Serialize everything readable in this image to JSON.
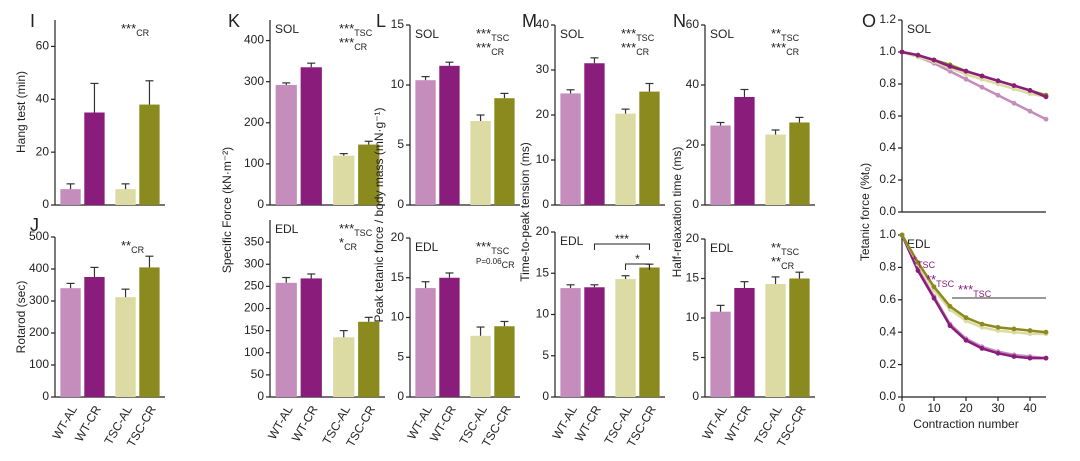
{
  "chart_data": [
    {
      "type": "bar",
      "panel": "I",
      "ylabel": "Hang test (min)",
      "categories": [
        null,
        null,
        null,
        null
      ],
      "values": [
        6,
        35,
        6,
        38
      ],
      "errors": [
        2,
        11,
        2,
        9
      ],
      "colors": [
        "#c48dbc",
        "#8a1c7c",
        "#dcdba3",
        "#8b8a1f"
      ],
      "ylim": [
        0,
        70
      ],
      "yticks": [
        0,
        20,
        40,
        60
      ],
      "annotations": [
        {
          "text": "***",
          "sub": "CR"
        }
      ]
    },
    {
      "type": "bar",
      "panel": "J",
      "ylabel": "Rotarod (sec)",
      "categories": [
        "WT-AL",
        "WT-CR",
        "TSC-AL",
        "TSC-CR"
      ],
      "values": [
        340,
        375,
        312,
        405
      ],
      "errors": [
        15,
        30,
        25,
        35
      ],
      "colors": [
        "#c48dbc",
        "#8a1c7c",
        "#dcdba3",
        "#8b8a1f"
      ],
      "ylim": [
        0,
        500
      ],
      "yticks": [
        0,
        100,
        200,
        300,
        400,
        500
      ],
      "annotations": [
        {
          "text": "**",
          "sub": "CR"
        }
      ]
    },
    {
      "type": "bar",
      "panel": "K",
      "subtitle": "SOL",
      "ylabel": "Specific Force (kN·m⁻²)",
      "categories": [
        null,
        null,
        null,
        null
      ],
      "values": [
        292,
        335,
        120,
        147
      ],
      "errors": [
        5,
        10,
        5,
        8
      ],
      "colors": [
        "#c48dbc",
        "#8a1c7c",
        "#dcdba3",
        "#8b8a1f"
      ],
      "ylim": [
        0,
        450
      ],
      "yticks": [
        0,
        100,
        200,
        300,
        400
      ],
      "annotations": [
        {
          "text": "***",
          "sub": "TSC"
        },
        {
          "text": "***",
          "sub": "CR"
        }
      ]
    },
    {
      "type": "bar",
      "subtitle": "EDL",
      "categories": [
        "WT-AL",
        "WT-CR",
        "TSC-AL",
        "TSC-CR"
      ],
      "values": [
        258,
        268,
        135,
        170
      ],
      "errors": [
        12,
        10,
        15,
        10
      ],
      "colors": [
        "#c48dbc",
        "#8a1c7c",
        "#dcdba3",
        "#8b8a1f"
      ],
      "ylim": [
        0,
        400
      ],
      "yticks": [
        0,
        50,
        100,
        150,
        200,
        250,
        300,
        350
      ],
      "annotations": [
        {
          "text": "***",
          "sub": "TSC"
        },
        {
          "text": "*",
          "sub": "CR"
        }
      ]
    },
    {
      "type": "bar",
      "panel": "L",
      "subtitle": "SOL",
      "ylabel": "Peak tetanic force / body mass (mN·g⁻¹)",
      "categories": [
        null,
        null,
        null,
        null
      ],
      "values": [
        10.4,
        11.6,
        7.0,
        8.9
      ],
      "errors": [
        0.3,
        0.3,
        0.5,
        0.4
      ],
      "colors": [
        "#c48dbc",
        "#8a1c7c",
        "#dcdba3",
        "#8b8a1f"
      ],
      "ylim": [
        0,
        15
      ],
      "yticks": [
        0,
        5,
        10,
        15
      ],
      "annotations": [
        {
          "text": "***",
          "sub": "TSC"
        },
        {
          "text": "***",
          "sub": "CR"
        }
      ]
    },
    {
      "type": "bar",
      "subtitle": "EDL",
      "categories": [
        "WT-AL",
        "WT-CR",
        "TSC-AL",
        "TSC-CR"
      ],
      "values": [
        13.7,
        15.0,
        7.7,
        8.9
      ],
      "errors": [
        0.8,
        0.6,
        1.1,
        0.6
      ],
      "colors": [
        "#c48dbc",
        "#8a1c7c",
        "#dcdba3",
        "#8b8a1f"
      ],
      "ylim": [
        0,
        20
      ],
      "yticks": [
        0,
        5,
        10,
        15,
        20
      ],
      "annotations": [
        {
          "text": "***",
          "sub": "TSC"
        },
        {
          "text": "P=0.06",
          "sub": "CR"
        }
      ]
    },
    {
      "type": "bar",
      "panel": "M",
      "subtitle": "SOL",
      "ylabel": "Time-to-peak tension (ms)",
      "categories": [
        null,
        null,
        null,
        null
      ],
      "values": [
        24.8,
        31.5,
        20.3,
        25.2
      ],
      "errors": [
        0.8,
        1.2,
        1.0,
        1.8
      ],
      "colors": [
        "#c48dbc",
        "#8a1c7c",
        "#dcdba3",
        "#8b8a1f"
      ],
      "ylim": [
        0,
        40
      ],
      "yticks": [
        0,
        10,
        20,
        30,
        40
      ],
      "annotations": [
        {
          "text": "***",
          "sub": "TSC"
        },
        {
          "text": "***",
          "sub": "CR"
        }
      ]
    },
    {
      "type": "bar",
      "subtitle": "EDL",
      "categories": [
        "WT-AL",
        "WT-CR",
        "TSC-AL",
        "TSC-CR"
      ],
      "values": [
        13.2,
        13.3,
        14.3,
        15.7
      ],
      "errors": [
        0.4,
        0.3,
        0.4,
        0.4
      ],
      "colors": [
        "#c48dbc",
        "#8a1c7c",
        "#dcdba3",
        "#8b8a1f"
      ],
      "ylim": [
        0,
        20
      ],
      "yticks": [
        0,
        5,
        10,
        15,
        20
      ],
      "brackets": [
        "***",
        "*"
      ]
    },
    {
      "type": "bar",
      "panel": "N",
      "subtitle": "SOL",
      "ylabel": "Half-relaxation time  (ms)",
      "categories": [
        null,
        null,
        null,
        null
      ],
      "values": [
        26.5,
        36,
        23.5,
        27.5
      ],
      "errors": [
        1,
        2.5,
        1.5,
        1.7
      ],
      "colors": [
        "#c48dbc",
        "#8a1c7c",
        "#dcdba3",
        "#8b8a1f"
      ],
      "ylim": [
        0,
        60
      ],
      "yticks": [
        0,
        20,
        40,
        60
      ],
      "annotations": [
        {
          "text": "**",
          "sub": "TSC"
        },
        {
          "text": "***",
          "sub": "CR"
        }
      ]
    },
    {
      "type": "bar",
      "subtitle": "EDL",
      "categories": [
        "WT-AL",
        "WT-CR",
        "TSC-AL",
        "TSC-CR"
      ],
      "values": [
        10.8,
        13.8,
        14.3,
        15.0
      ],
      "errors": [
        0.8,
        0.8,
        0.9,
        0.8
      ],
      "colors": [
        "#c48dbc",
        "#8a1c7c",
        "#dcdba3",
        "#8b8a1f"
      ],
      "ylim": [
        0,
        20
      ],
      "yticks": [
        0,
        5,
        10,
        15,
        20
      ],
      "annotations": [
        {
          "text": "**",
          "sub": "TSC"
        },
        {
          "text": "**",
          "sub": "CR"
        }
      ]
    },
    {
      "type": "line",
      "panel": "O",
      "subtitle": "SOL",
      "ylabel": "Tetanic force (%t₀)",
      "x": [
        0,
        5,
        10,
        15,
        20,
        25,
        30,
        35,
        40,
        45
      ],
      "xlim": [
        0,
        45
      ],
      "series": [
        {
          "name": "WT-AL",
          "color": "#c48dbc",
          "values": [
            1.0,
            0.97,
            0.93,
            0.88,
            0.83,
            0.78,
            0.73,
            0.68,
            0.63,
            0.58
          ]
        },
        {
          "name": "TSC-AL",
          "color": "#dcdba3",
          "values": [
            1.0,
            0.97,
            0.94,
            0.9,
            0.86,
            0.83,
            0.8,
            0.77,
            0.74,
            0.72
          ]
        },
        {
          "name": "TSC-CR",
          "color": "#8b8a1f",
          "values": [
            1.0,
            0.98,
            0.95,
            0.92,
            0.88,
            0.85,
            0.82,
            0.79,
            0.76,
            0.73
          ]
        },
        {
          "name": "WT-CR",
          "color": "#8a1c7c",
          "values": [
            1.0,
            0.98,
            0.95,
            0.91,
            0.88,
            0.85,
            0.82,
            0.79,
            0.76,
            0.72
          ]
        }
      ],
      "ylim": [
        0,
        1.2
      ],
      "yticks": [
        {
          "value": 0,
          "label": "0.0"
        },
        {
          "value": 0.2,
          "label": "0.2"
        },
        {
          "value": 0.4,
          "label": "0.4"
        },
        {
          "value": 0.6,
          "label": "0.6"
        },
        {
          "value": 0.8,
          "label": "0.8"
        },
        {
          "value": 1,
          "label": "1.0"
        },
        {
          "value": 1.2,
          "label": "1.2"
        }
      ]
    },
    {
      "type": "line",
      "subtitle": "EDL",
      "xlabel": "Contraction number",
      "x": [
        0,
        5,
        10,
        15,
        20,
        25,
        30,
        35,
        40,
        45
      ],
      "xlim": [
        0,
        45
      ],
      "xticks": [
        0,
        10,
        20,
        30,
        40
      ],
      "series": [
        {
          "name": "WT-AL",
          "color": "#c48dbc",
          "values": [
            1.0,
            0.79,
            0.62,
            0.45,
            0.36,
            0.31,
            0.28,
            0.26,
            0.25,
            0.24
          ]
        },
        {
          "name": "WT-CR",
          "color": "#8a1c7c",
          "values": [
            1.0,
            0.78,
            0.61,
            0.44,
            0.35,
            0.3,
            0.27,
            0.25,
            0.24,
            0.24
          ]
        },
        {
          "name": "TSC-AL",
          "color": "#dcdba3",
          "values": [
            1.0,
            0.82,
            0.66,
            0.54,
            0.47,
            0.43,
            0.41,
            0.4,
            0.39,
            0.39
          ]
        },
        {
          "name": "TSC-CR",
          "color": "#8b8a1f",
          "values": [
            1.0,
            0.83,
            0.68,
            0.56,
            0.49,
            0.45,
            0.43,
            0.42,
            0.41,
            0.4
          ]
        }
      ],
      "ylim": [
        0,
        1.0
      ],
      "yticks": [
        {
          "value": 0,
          "label": "0.0"
        },
        {
          "value": 0.2,
          "label": "0.2"
        },
        {
          "value": 0.4,
          "label": "0.4"
        },
        {
          "value": 0.6,
          "label": "0.6"
        },
        {
          "value": 0.8,
          "label": "0.8"
        },
        {
          "value": 1,
          "label": "1.0"
        }
      ],
      "annotations": [
        {
          "text": "*",
          "sub": "TSC"
        },
        {
          "text": "**",
          "sub": "TSC"
        },
        {
          "text": "***",
          "sub": "TSC"
        }
      ]
    }
  ]
}
